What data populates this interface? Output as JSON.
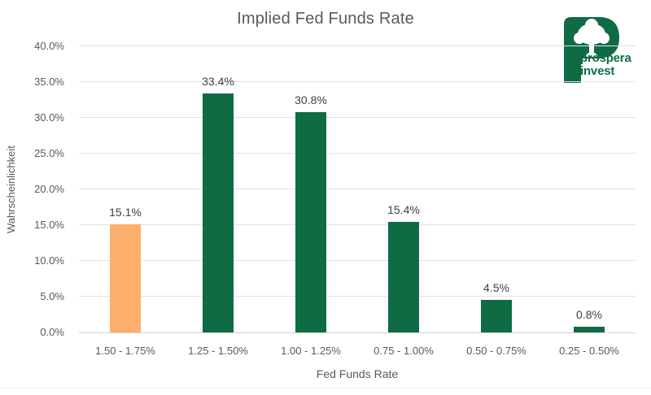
{
  "page": {
    "background": "#ffffff"
  },
  "logo": {
    "icon": "tree-in-letter-p",
    "line1": "prospera",
    "line2": "invest",
    "color": "#0f6b44"
  },
  "colors": {
    "bar_green": "#0f6b44",
    "bar_orange": "#fcae6b",
    "gridline": "#e2e2e2",
    "axis_line": "#d2d2d2",
    "axis_text": "#595959",
    "data_label_text": "#404040",
    "title_text": "#595959"
  },
  "chart_data": {
    "type": "bar",
    "title": "Implied Fed Funds Rate",
    "xlabel": "Fed Funds Rate",
    "ylabel": "Wahrscheinlichkeit",
    "categories": [
      "1.50 - 1.75%",
      "1.25 - 1.50%",
      "1.00 - 1.25%",
      "0.75 - 1.00%",
      "0.50 - 0.75%",
      "0.25 - 0.50%"
    ],
    "values": [
      15.1,
      33.4,
      30.8,
      15.4,
      4.5,
      0.8
    ],
    "value_labels": [
      "15.1%",
      "33.4%",
      "30.8%",
      "15.4%",
      "4.5%",
      "0.8%"
    ],
    "bar_colors": [
      "#fcae6b",
      "#0f6b44",
      "#0f6b44",
      "#0f6b44",
      "#0f6b44",
      "#0f6b44"
    ],
    "highlighted_category": "1.50 - 1.75%",
    "ylim": [
      0,
      40
    ],
    "ytick_step": 5,
    "ytick_labels": [
      "0.0%",
      "5.0%",
      "10.0%",
      "15.0%",
      "20.0%",
      "25.0%",
      "30.0%",
      "35.0%",
      "40.0%"
    ],
    "grid": true,
    "legend": "none"
  }
}
